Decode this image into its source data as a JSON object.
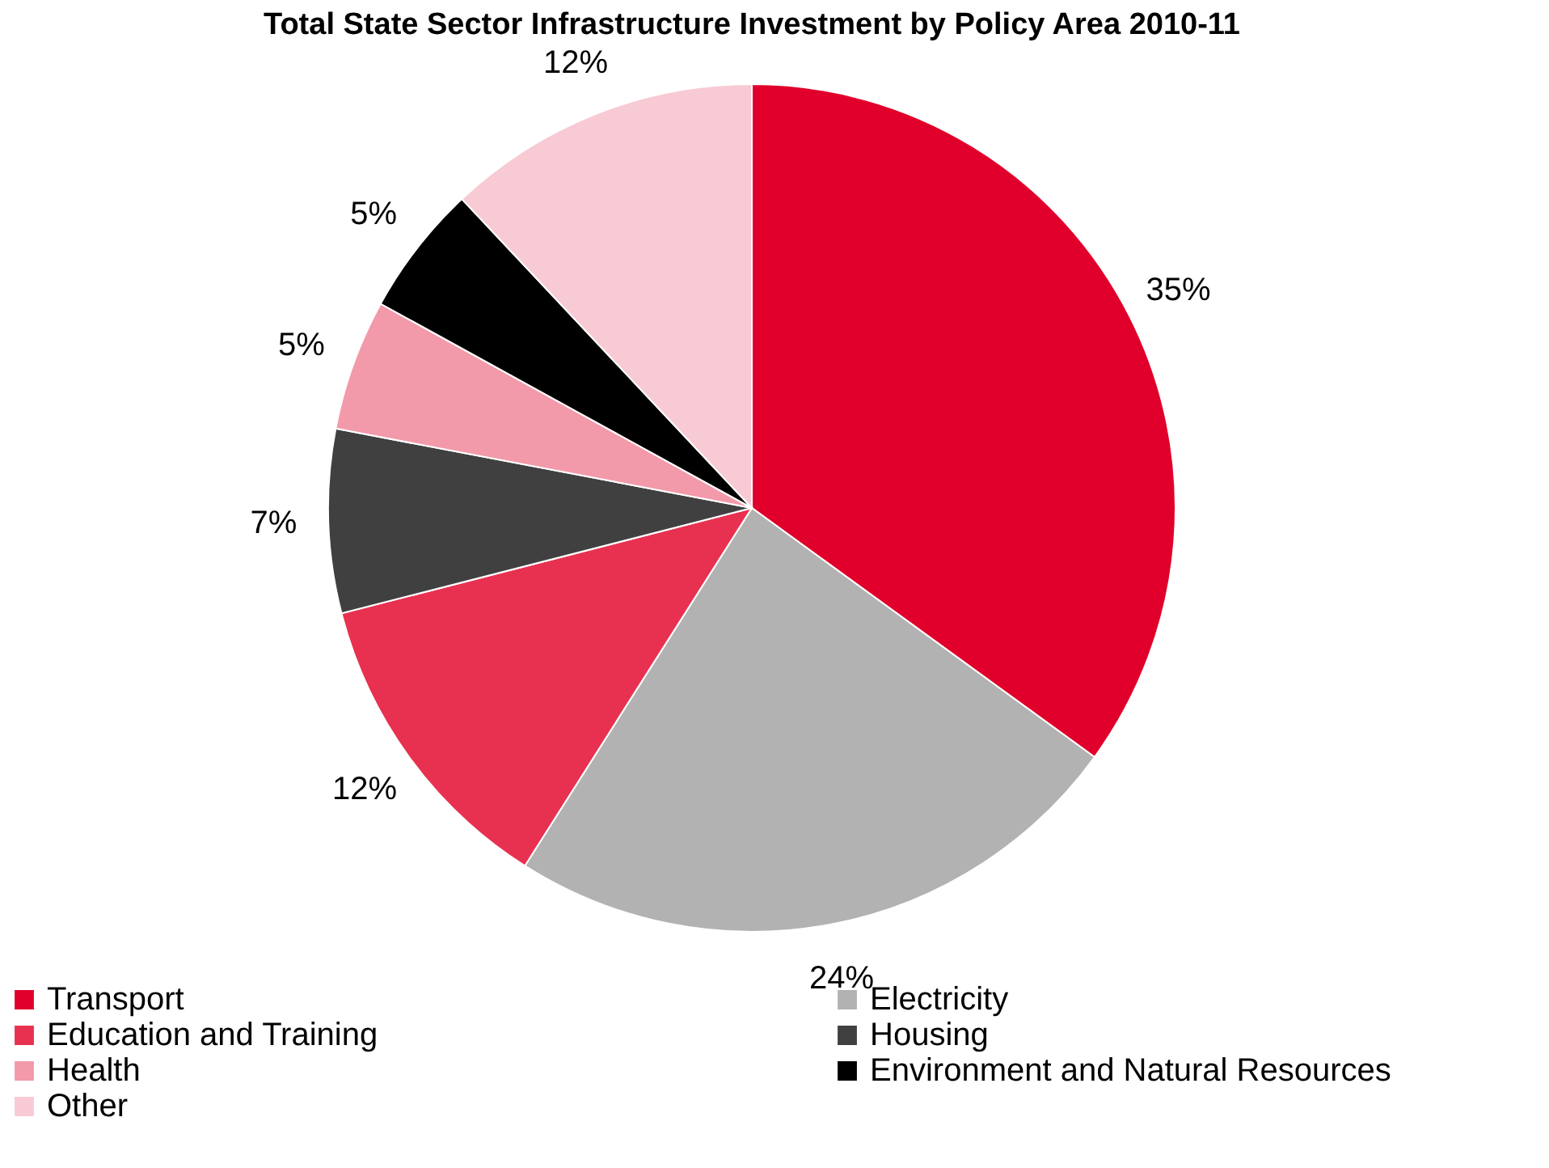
{
  "chart_data": {
    "type": "pie",
    "title": "Total State Sector Infrastructure Investment by Policy Area 2010-11",
    "categories": [
      "Transport",
      "Electricity",
      "Education and Training",
      "Housing",
      "Health",
      "Environment and Natural Resources",
      "Other"
    ],
    "values": [
      35,
      24,
      12,
      7,
      5,
      5,
      12
    ],
    "value_labels": [
      "35%",
      "24%",
      "12%",
      "7%",
      "5%",
      "5%",
      "12%"
    ],
    "colors": [
      "#e0002b",
      "#b2b2b2",
      "#e83150",
      "#404040",
      "#f29aaa",
      "#000000",
      "#f8cad4"
    ],
    "legend": "bottom"
  }
}
